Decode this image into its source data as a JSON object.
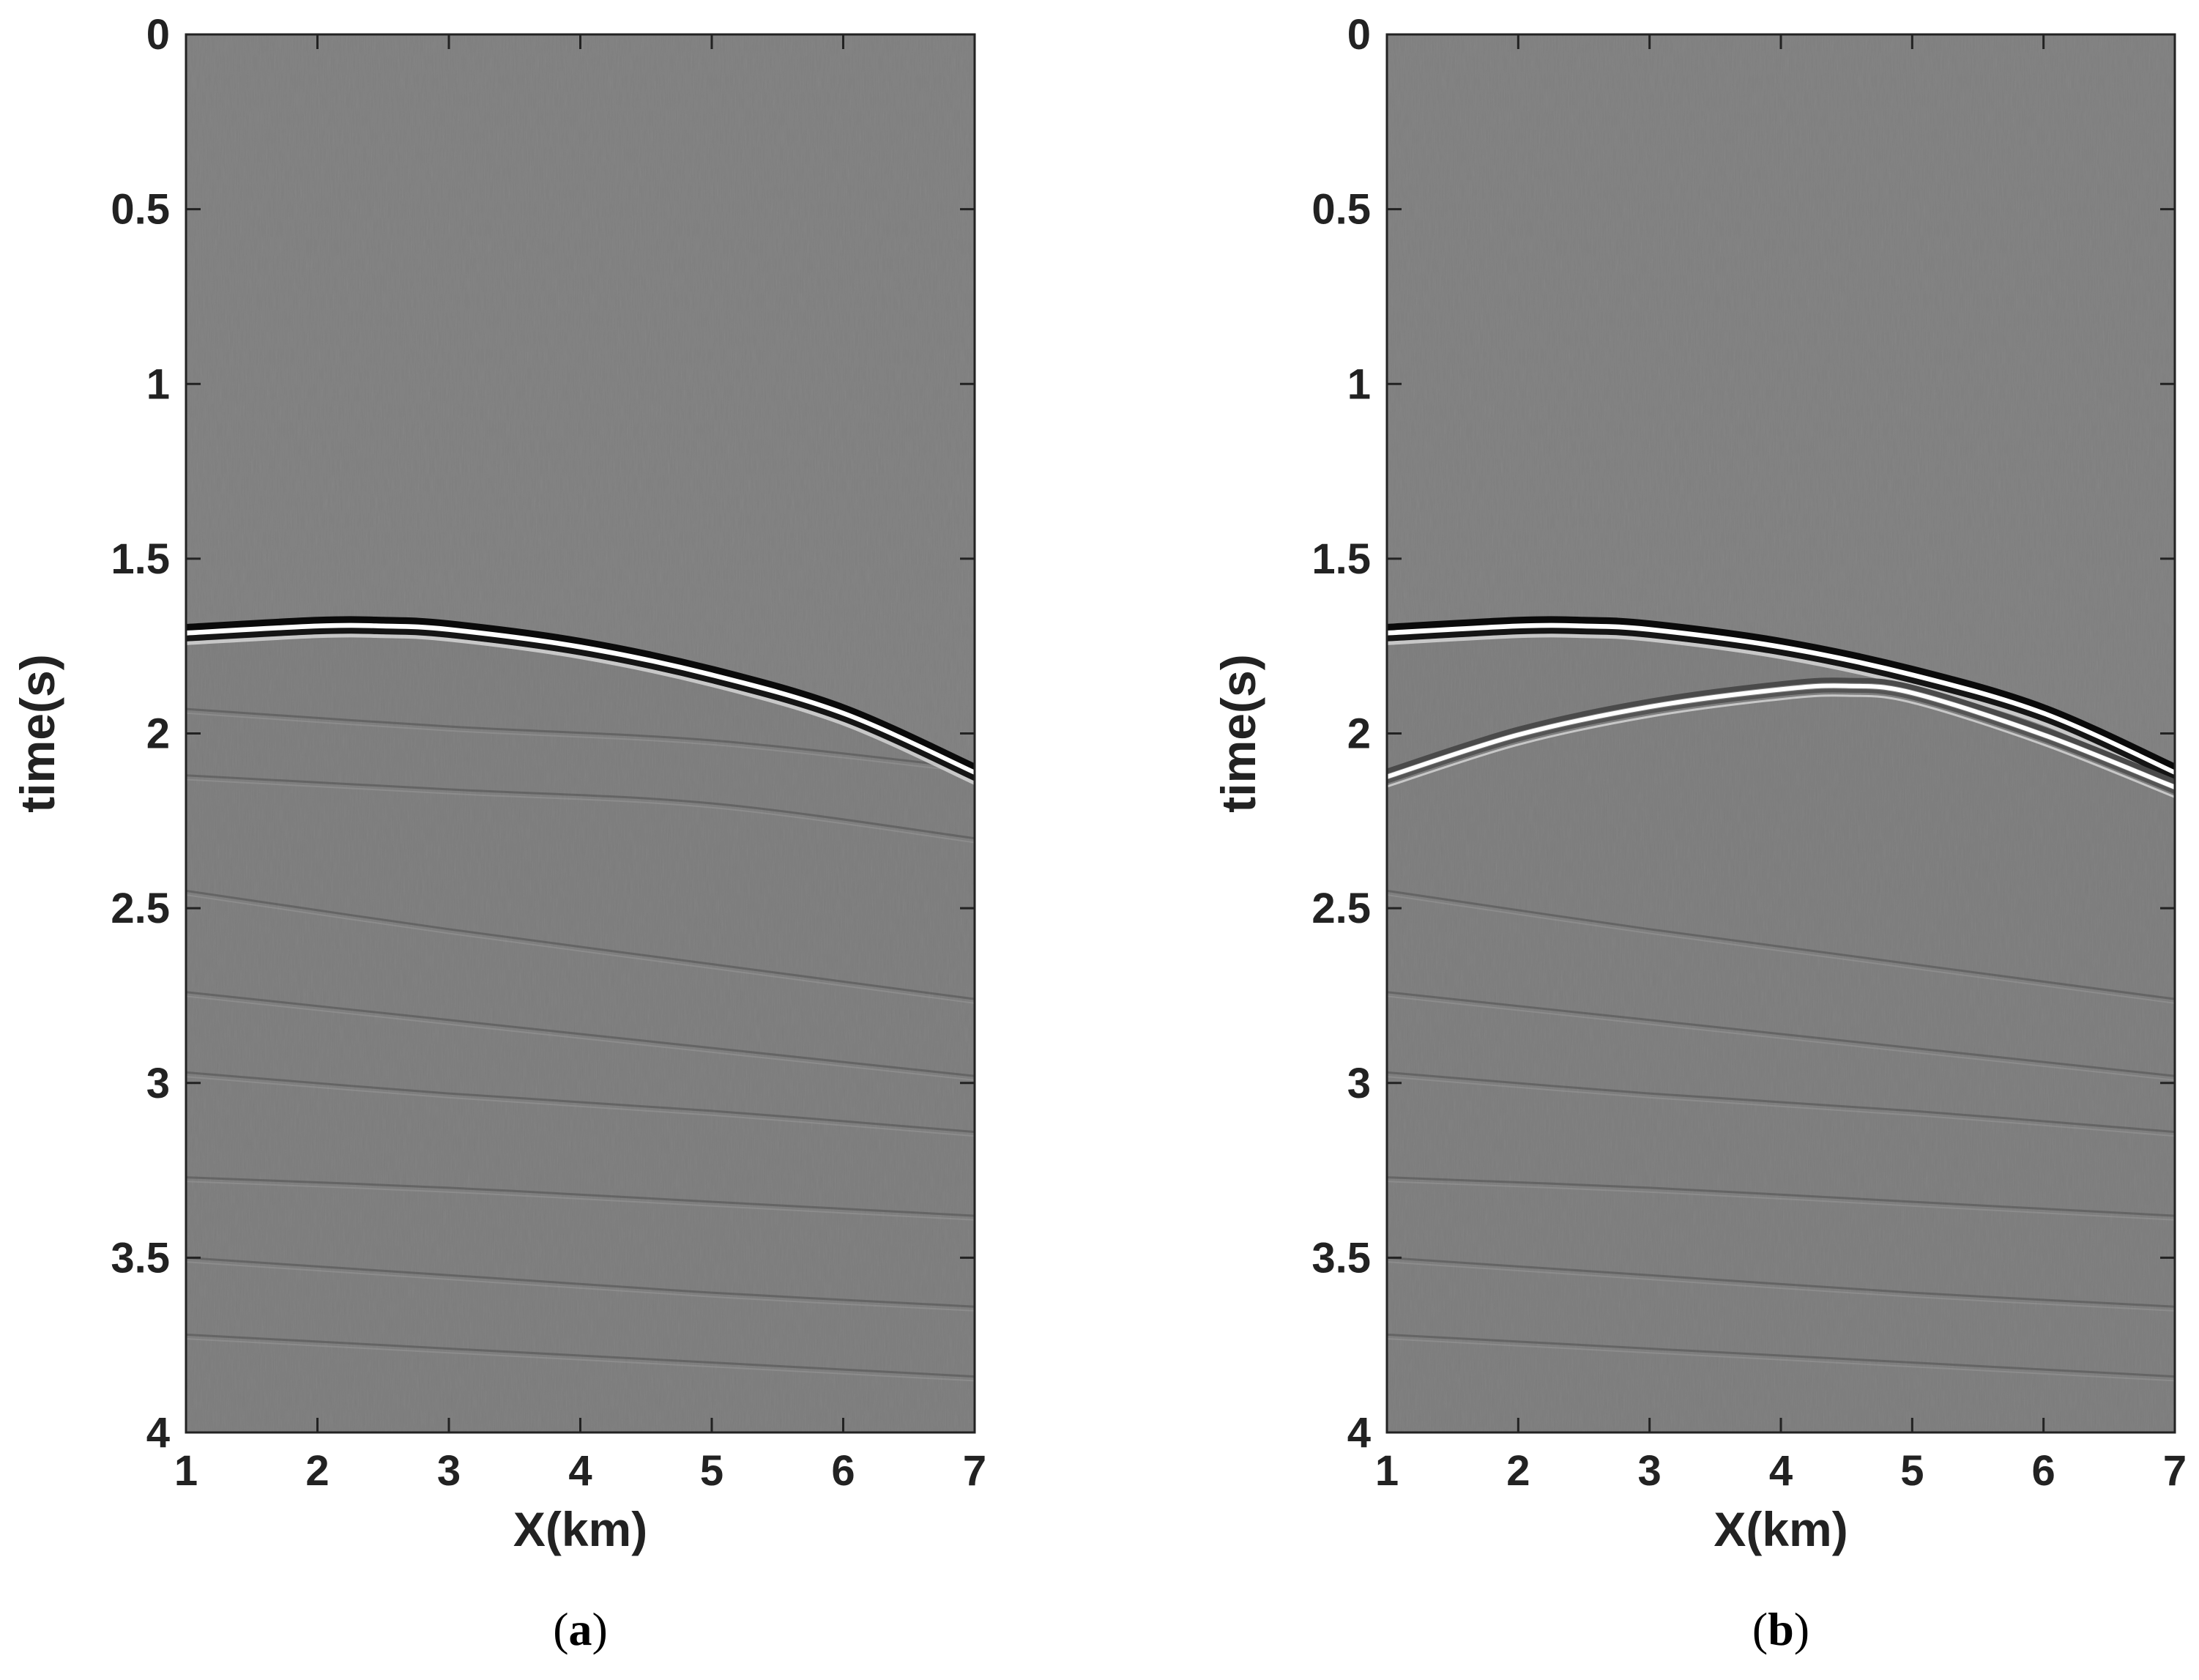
{
  "chart_data": [
    {
      "type": "heatmap",
      "panel_label": "a",
      "xlabel": "X(km)",
      "ylabel": "time(s)",
      "xlim": [
        1,
        7
      ],
      "ylim": [
        0,
        4
      ],
      "y_reversed": true,
      "colormap": "gray",
      "x_ticks": [
        1,
        2,
        3,
        4,
        5,
        6,
        7
      ],
      "y_ticks": [
        0,
        0.5,
        1,
        1.5,
        2,
        2.5,
        3,
        3.5,
        4
      ],
      "x_tick_labels": [
        "1",
        "2",
        "3",
        "4",
        "5",
        "6",
        "7"
      ],
      "y_tick_labels": [
        "0",
        "0.5",
        "1",
        "1.5",
        "2",
        "2.5",
        "3",
        "3.5",
        "4"
      ],
      "events": [
        {
          "kind": "direct_arrival",
          "x": [
            1,
            2,
            2.5,
            3,
            4,
            5,
            6,
            7
          ],
          "t": [
            1.71,
            1.69,
            1.69,
            1.7,
            1.75,
            1.83,
            1.94,
            2.11
          ]
        }
      ],
      "reflections": [
        {
          "x": [
            1,
            3,
            5,
            7
          ],
          "t": [
            1.93,
            1.98,
            2.02,
            2.1
          ]
        },
        {
          "x": [
            1,
            3,
            5,
            7
          ],
          "t": [
            2.12,
            2.16,
            2.2,
            2.3
          ]
        },
        {
          "x": [
            1,
            3,
            5,
            7
          ],
          "t": [
            2.45,
            2.56,
            2.66,
            2.76
          ]
        },
        {
          "x": [
            1,
            3,
            5,
            7
          ],
          "t": [
            2.74,
            2.82,
            2.9,
            2.98
          ]
        },
        {
          "x": [
            1,
            3,
            5,
            7
          ],
          "t": [
            2.97,
            3.03,
            3.08,
            3.14
          ]
        },
        {
          "x": [
            1,
            3,
            5,
            7
          ],
          "t": [
            3.27,
            3.3,
            3.34,
            3.38
          ]
        },
        {
          "x": [
            1,
            3,
            5,
            7
          ],
          "t": [
            3.5,
            3.55,
            3.6,
            3.64
          ]
        },
        {
          "x": [
            1,
            3,
            5,
            7
          ],
          "t": [
            3.72,
            3.76,
            3.8,
            3.84
          ]
        }
      ]
    },
    {
      "type": "heatmap",
      "panel_label": "b",
      "xlabel": "X(km)",
      "ylabel": "time(s)",
      "xlim": [
        1,
        7
      ],
      "ylim": [
        0,
        4
      ],
      "y_reversed": true,
      "colormap": "gray",
      "x_ticks": [
        1,
        2,
        3,
        4,
        5,
        6,
        7
      ],
      "y_ticks": [
        0,
        0.5,
        1,
        1.5,
        2,
        2.5,
        3,
        3.5,
        4
      ],
      "x_tick_labels": [
        "1",
        "2",
        "3",
        "4",
        "5",
        "6",
        "7"
      ],
      "y_tick_labels": [
        "0",
        "0.5",
        "1",
        "1.5",
        "2",
        "2.5",
        "3",
        "3.5",
        "4"
      ],
      "events": [
        {
          "kind": "direct_arrival",
          "x": [
            1,
            2,
            2.5,
            3,
            4,
            5,
            6,
            7
          ],
          "t": [
            1.71,
            1.69,
            1.69,
            1.7,
            1.75,
            1.83,
            1.94,
            2.11
          ]
        },
        {
          "kind": "secondary_arrival",
          "x": [
            1,
            2,
            3,
            4,
            4.5,
            5,
            6,
            7
          ],
          "t": [
            2.12,
            2.0,
            1.92,
            1.87,
            1.86,
            1.88,
            2.0,
            2.15
          ]
        }
      ],
      "reflections": [
        {
          "x": [
            1,
            3,
            5,
            7
          ],
          "t": [
            2.45,
            2.56,
            2.66,
            2.76
          ]
        },
        {
          "x": [
            1,
            3,
            5,
            7
          ],
          "t": [
            2.74,
            2.82,
            2.9,
            2.98
          ]
        },
        {
          "x": [
            1,
            3,
            5,
            7
          ],
          "t": [
            2.97,
            3.03,
            3.08,
            3.14
          ]
        },
        {
          "x": [
            1,
            3,
            5,
            7
          ],
          "t": [
            3.27,
            3.3,
            3.34,
            3.38
          ]
        },
        {
          "x": [
            1,
            3,
            5,
            7
          ],
          "t": [
            3.5,
            3.55,
            3.6,
            3.64
          ]
        },
        {
          "x": [
            1,
            3,
            5,
            7
          ],
          "t": [
            3.72,
            3.76,
            3.8,
            3.84
          ]
        }
      ]
    }
  ]
}
